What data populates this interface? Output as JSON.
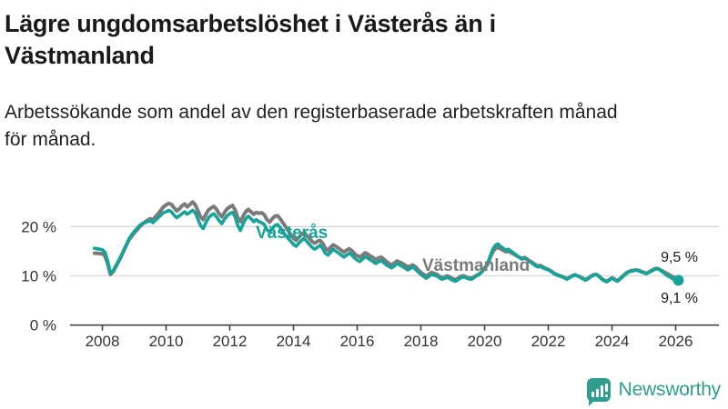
{
  "header": {
    "title": "Lägre ungdomsarbetslöshet i Västerås än i Västmanland",
    "subtitle": "Arbetssökande som andel av den registerbaserade arbetskraften månad för månad."
  },
  "footer": {
    "brand": "Newsworthy"
  },
  "chart_data": {
    "type": "line",
    "title": "Lägre ungdomsarbetslöshet i Västerås än i Västmanland",
    "xlabel": "",
    "ylabel": "Arbetssökande som andel av den registerbaserade arbetskraften",
    "x_start": 2007.75,
    "x_step": "monthly",
    "x_end": 2026.0833,
    "xticks": [
      2008,
      2010,
      2012,
      2014,
      2016,
      2018,
      2020,
      2022,
      2024,
      2026
    ],
    "yticks": [
      {
        "value": 0,
        "label": "0 %"
      },
      {
        "value": 10,
        "label": "10 %"
      },
      {
        "value": 20,
        "label": "20 %"
      }
    ],
    "ylim": [
      0,
      27
    ],
    "grid": "horizontal-only",
    "legend_position": "inline-labels",
    "style": {
      "grid_color": "#d8d8d8",
      "axis_color": "#444444",
      "tick_text_color": "#333333",
      "end_label_color": "#1a1a1a"
    },
    "series": [
      {
        "name": "Västmanland",
        "color": "#7b7b7b",
        "stroke_width": 4,
        "end_label": "9,5 %",
        "end_dot": false,
        "values": [
          14.6,
          14.6,
          14.5,
          14.5,
          14.0,
          12.5,
          10.3,
          10.8,
          11.8,
          12.8,
          13.8,
          15.0,
          16.2,
          17.3,
          18.0,
          18.7,
          19.3,
          19.9,
          20.5,
          20.9,
          21.3,
          21.6,
          21.4,
          22.0,
          22.6,
          23.3,
          24.0,
          24.4,
          24.7,
          24.5,
          23.8,
          23.2,
          23.6,
          24.2,
          24.6,
          24.0,
          24.5,
          25.0,
          24.4,
          23.2,
          22.0,
          21.4,
          22.5,
          23.4,
          23.8,
          24.1,
          23.5,
          22.6,
          22.0,
          22.9,
          23.6,
          24.0,
          24.3,
          23.4,
          21.8,
          21.0,
          22.1,
          23.0,
          23.5,
          23.0,
          22.5,
          22.9,
          22.7,
          22.8,
          22.4,
          21.4,
          20.9,
          21.6,
          22.1,
          22.2,
          21.6,
          20.8,
          20.0,
          19.2,
          18.4,
          17.6,
          17.2,
          17.8,
          18.4,
          18.8,
          18.2,
          17.6,
          17.0,
          16.6,
          17.0,
          17.2,
          16.6,
          15.6,
          15.2,
          15.8,
          16.3,
          16.0,
          15.6,
          15.2,
          14.8,
          15.2,
          15.5,
          15.1,
          14.5,
          14.1,
          13.8,
          14.2,
          14.7,
          14.4,
          14.0,
          13.7,
          13.3,
          13.6,
          13.8,
          13.4,
          12.9,
          12.5,
          12.2,
          12.6,
          13.0,
          12.8,
          12.5,
          12.2,
          11.8,
          12.0,
          12.2,
          11.8,
          11.2,
          10.7,
          10.3,
          10.0,
          10.3,
          10.7,
          10.5,
          10.3,
          9.9,
          9.6,
          9.8,
          10.0,
          9.7,
          9.4,
          9.2,
          9.5,
          9.9,
          10.0,
          9.8,
          9.6,
          9.5,
          9.8,
          10.1,
          10.4,
          10.9,
          11.6,
          12.2,
          13.5,
          14.8,
          15.5,
          15.8,
          15.5,
          15.2,
          14.9,
          15.0,
          14.7,
          14.4,
          14.1,
          13.8,
          13.5,
          13.7,
          13.4,
          13.0,
          12.7,
          12.3,
          12.0,
          12.1,
          11.8,
          11.5,
          11.3,
          11.0,
          10.6,
          10.3,
          10.1,
          9.9,
          9.7,
          9.4,
          9.7,
          10.0,
          10.2,
          10.0,
          9.8,
          9.5,
          9.2,
          9.5,
          9.9,
          10.2,
          10.3,
          10.0,
          9.5,
          9.1,
          8.9,
          9.2,
          9.6,
          9.3,
          9.0,
          9.4,
          9.9,
          10.4,
          10.8,
          11.0,
          11.1,
          11.2,
          11.1,
          10.9,
          10.7,
          10.5,
          10.8,
          11.1,
          11.4,
          11.5,
          11.3,
          11.0,
          10.7,
          10.4,
          10.1,
          9.8,
          9.6,
          9.5
        ]
      },
      {
        "name": "Västerås",
        "color": "#17a398",
        "stroke_width": 3.6,
        "end_label": "9,1 %",
        "end_dot": true,
        "values": [
          15.6,
          15.5,
          15.4,
          15.3,
          14.8,
          13.0,
          10.6,
          11.0,
          12.0,
          13.0,
          14.0,
          15.2,
          16.3,
          17.5,
          18.3,
          19.0,
          19.6,
          20.2,
          20.6,
          20.8,
          21.0,
          21.2,
          20.8,
          21.3,
          21.8,
          22.3,
          22.8,
          23.0,
          23.3,
          23.0,
          22.3,
          21.8,
          22.2,
          22.6,
          23.0,
          22.5,
          22.9,
          23.3,
          22.8,
          21.5,
          20.2,
          19.6,
          20.8,
          21.8,
          22.3,
          22.6,
          22.0,
          21.2,
          20.6,
          21.5,
          22.2,
          22.6,
          22.9,
          22.0,
          20.2,
          19.2,
          20.5,
          21.6,
          22.1,
          21.6,
          21.0,
          21.4,
          21.0,
          20.8,
          20.4,
          19.4,
          18.9,
          19.6,
          20.2,
          20.4,
          19.8,
          19.0,
          18.2,
          17.6,
          17.0,
          16.4,
          16.0,
          16.6,
          17.2,
          17.6,
          17.0,
          16.4,
          15.8,
          15.4,
          15.8,
          16.2,
          15.6,
          14.6,
          14.2,
          14.8,
          15.4,
          15.0,
          14.6,
          14.2,
          13.8,
          14.2,
          14.6,
          14.2,
          13.6,
          13.2,
          12.9,
          13.4,
          13.9,
          13.6,
          13.2,
          12.9,
          12.5,
          12.8,
          13.1,
          12.7,
          12.2,
          11.9,
          11.6,
          12.0,
          12.5,
          12.2,
          11.9,
          11.6,
          11.2,
          11.5,
          11.8,
          11.3,
          10.8,
          10.3,
          9.9,
          9.5,
          9.9,
          10.3,
          10.1,
          10.0,
          9.6,
          9.3,
          9.5,
          9.7,
          9.4,
          9.1,
          8.9,
          9.2,
          9.6,
          9.8,
          9.6,
          9.4,
          9.3,
          9.6,
          10.0,
          10.3,
          10.8,
          11.5,
          12.3,
          13.8,
          15.3,
          16.2,
          16.5,
          16.0,
          15.6,
          15.2,
          15.4,
          15.0,
          14.6,
          14.2,
          13.8,
          13.4,
          13.6,
          13.3,
          12.9,
          12.5,
          12.1,
          11.8,
          11.9,
          11.6,
          11.4,
          11.2,
          10.9,
          10.5,
          10.2,
          10.0,
          9.8,
          9.6,
          9.3,
          9.6,
          9.9,
          10.2,
          10.0,
          9.7,
          9.4,
          9.1,
          9.4,
          9.8,
          10.1,
          10.3,
          9.9,
          9.4,
          9.0,
          8.8,
          9.1,
          9.5,
          9.2,
          8.9,
          9.3,
          9.8,
          10.3,
          10.7,
          10.9,
          11.0,
          11.2,
          11.0,
          10.8,
          10.6,
          10.4,
          10.7,
          11.0,
          11.3,
          11.5,
          11.2,
          10.8,
          10.4,
          10.0,
          9.7,
          9.4,
          9.2,
          9.1
        ]
      }
    ]
  }
}
